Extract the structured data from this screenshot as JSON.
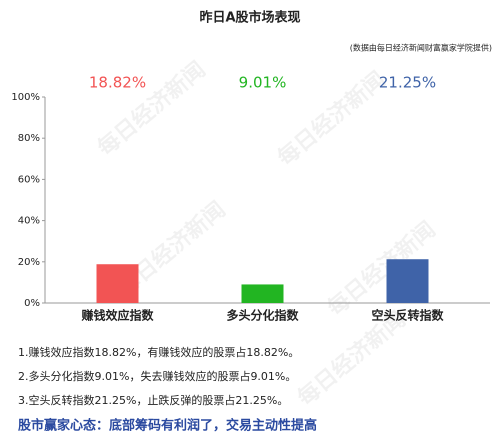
{
  "chart_data": {
    "type": "bar",
    "title": "昨日A股市场表现",
    "subtitle": "(数据由每日经济新闻财富赢家学院提供)",
    "categories": [
      "赚钱效应指数",
      "多头分化指数",
      "空头反转指数"
    ],
    "values": [
      18.82,
      9.01,
      21.25
    ],
    "value_labels": [
      "18.82%",
      "9.01%",
      "21.25%"
    ],
    "colors": [
      "#f25454",
      "#22b522",
      "#3f63a8"
    ],
    "ylim": [
      0,
      100
    ],
    "yticks": [
      {
        "value": 0,
        "label": "0%"
      },
      {
        "value": 20,
        "label": "20%"
      },
      {
        "value": 40,
        "label": "40%"
      },
      {
        "value": 60,
        "label": "60%"
      },
      {
        "value": 80,
        "label": "80%"
      },
      {
        "value": 100,
        "label": "100%"
      }
    ],
    "grid": false
  },
  "watermark": "每日经济新闻",
  "notes": [
    "1.赚钱效应指数18.82%，有赚钱效应的股票占18.82%。",
    "2.多头分化指数9.01%，失去赚钱效应的股票占9.01%。",
    "3.空头反转指数21.25%，止跌反弹的股票占21.25%。"
  ],
  "headline": "股市赢家心态：底部筹码有利润了，交易主动性提高"
}
